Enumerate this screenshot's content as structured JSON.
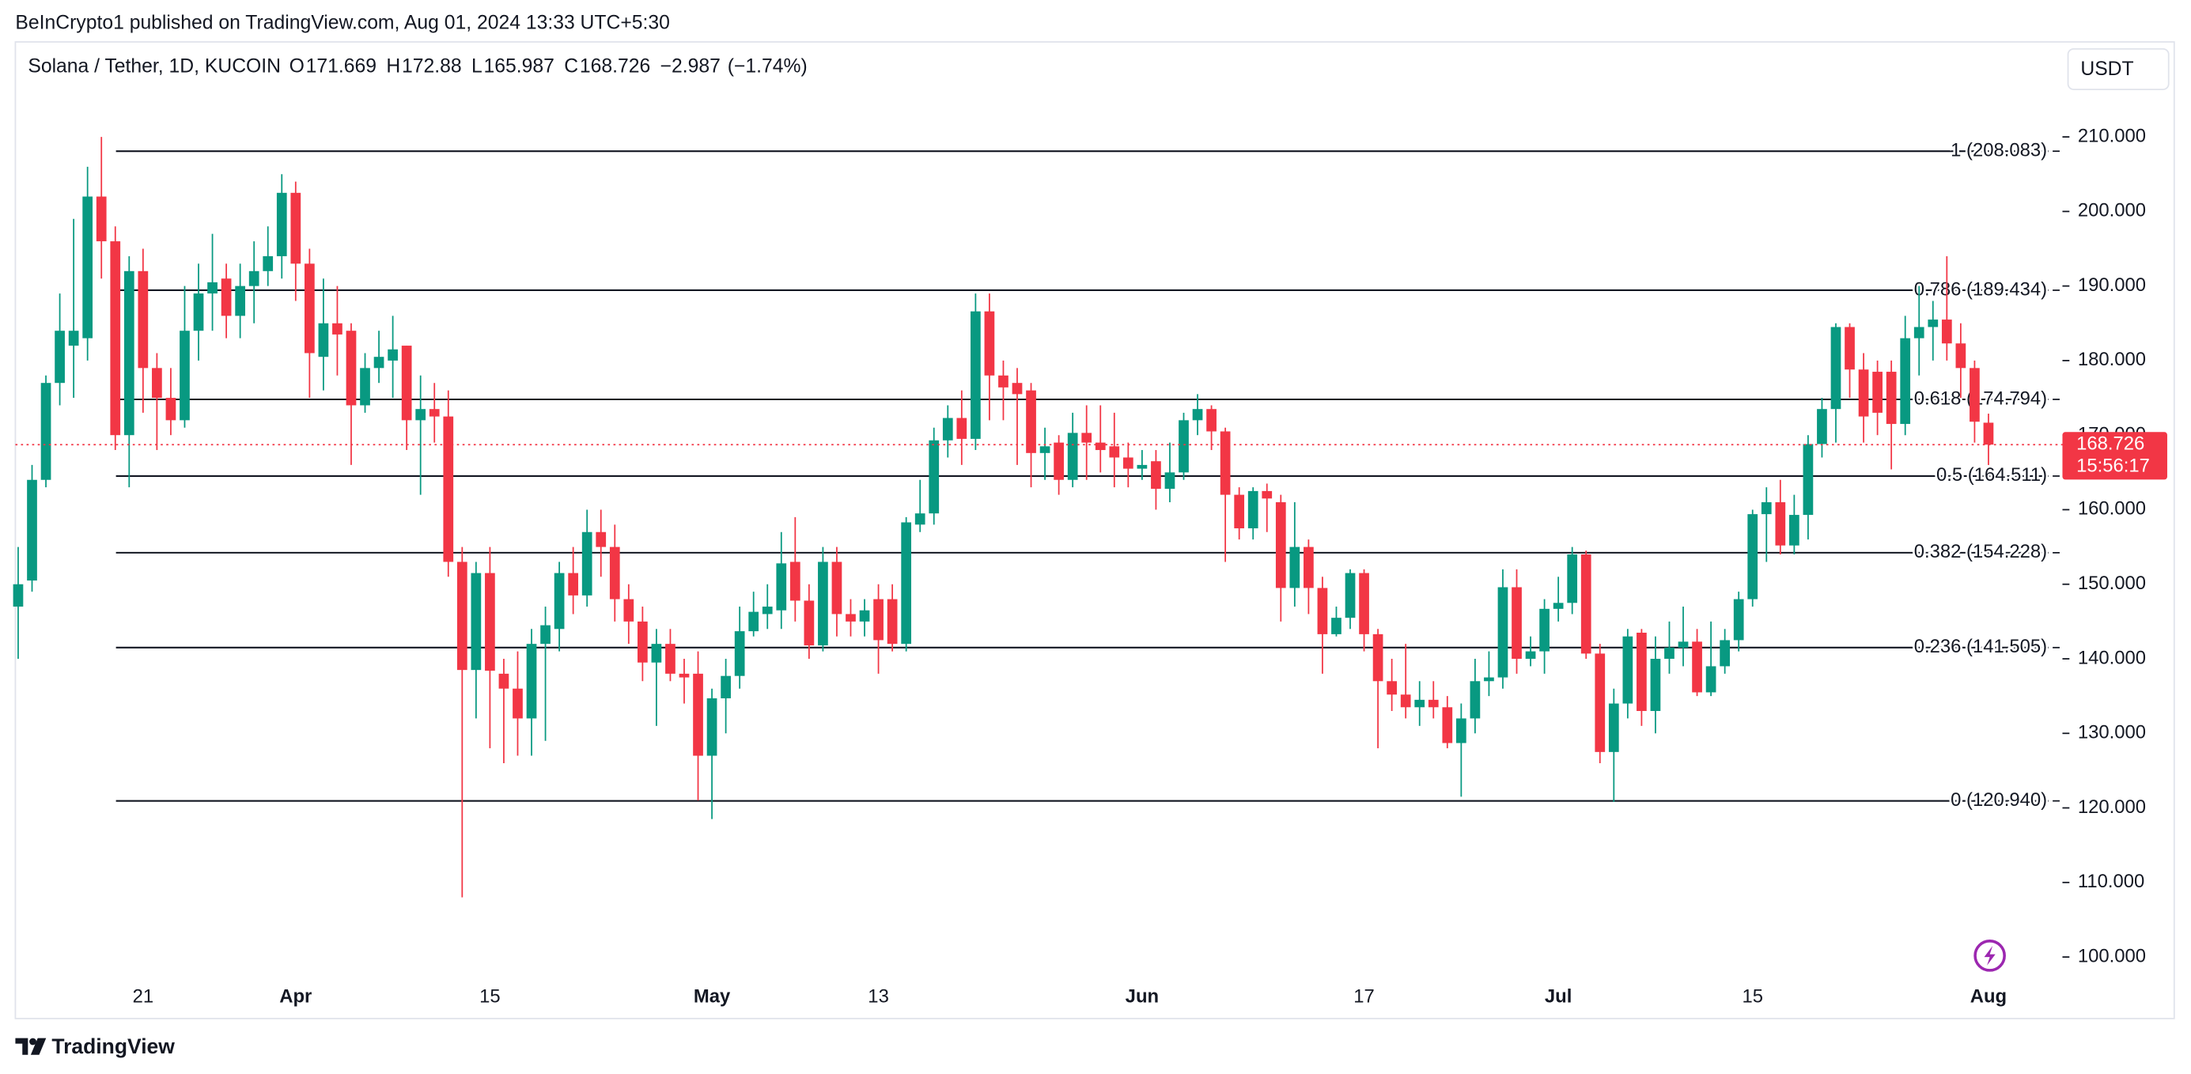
{
  "chart_data": {
    "type": "candlestick",
    "attribution": "BeInCrypto1 published on TradingView.com, Aug 01, 2024 13:33 UTC+5:30",
    "title": "Solana / Tether, 1D, KUCOIN",
    "legend_keys": [
      "O",
      "H",
      "L",
      "C"
    ],
    "change": {
      "value": -2.987,
      "label": "−2.987"
    },
    "change_pct": {
      "value": -1.74,
      "label": "(−1.74%)"
    },
    "currency": "USDT",
    "countdown": "15:56:17",
    "brand": "TradingView",
    "up_color": "#089981",
    "down_color": "#f23645",
    "ylim": [
      91.75,
      222.74
    ],
    "yticks": [
      {
        "value": 100,
        "label": "100.000"
      },
      {
        "value": 110,
        "label": "110.000"
      },
      {
        "value": 120,
        "label": "120.000"
      },
      {
        "value": 130,
        "label": "130.000"
      },
      {
        "value": 140,
        "label": "140.000"
      },
      {
        "value": 150,
        "label": "150.000"
      },
      {
        "value": 160,
        "label": "160.000"
      },
      {
        "value": 170,
        "label": "170.000"
      },
      {
        "value": 180,
        "label": "180.000"
      },
      {
        "value": 190,
        "label": "190.000"
      },
      {
        "value": 200,
        "label": "200.000"
      },
      {
        "value": 210,
        "label": "210.000"
      }
    ],
    "fib_levels": [
      {
        "value": 208.083,
        "label": "1 (208.083)"
      },
      {
        "value": 189.434,
        "label": "0.786 (189.434)"
      },
      {
        "value": 174.794,
        "label": "0.618 (174.794)"
      },
      {
        "value": 164.511,
        "label": "0.5 (164.511)"
      },
      {
        "value": 154.228,
        "label": "0.382 (154.228)"
      },
      {
        "value": 141.505,
        "label": "0.236 (141.505)"
      },
      {
        "value": 120.94,
        "label": "0 (120.940)"
      }
    ],
    "categories": [
      null,
      null,
      null,
      null,
      null,
      null,
      null,
      null,
      null,
      "21",
      null,
      null,
      null,
      null,
      null,
      null,
      null,
      null,
      null,
      null,
      "Apr",
      null,
      null,
      null,
      null,
      null,
      null,
      null,
      null,
      null,
      null,
      null,
      null,
      null,
      "15",
      null,
      null,
      null,
      null,
      null,
      null,
      null,
      null,
      null,
      null,
      null,
      null,
      null,
      null,
      null,
      "May",
      null,
      null,
      null,
      null,
      null,
      null,
      null,
      null,
      null,
      null,
      null,
      "13",
      null,
      null,
      null,
      null,
      null,
      null,
      null,
      null,
      null,
      null,
      null,
      null,
      null,
      null,
      null,
      null,
      null,
      null,
      "Jun",
      null,
      null,
      null,
      null,
      null,
      null,
      null,
      null,
      null,
      null,
      null,
      null,
      null,
      null,
      null,
      "17",
      null,
      null,
      null,
      null,
      null,
      null,
      null,
      null,
      null,
      null,
      null,
      null,
      null,
      "Jul",
      null,
      null,
      null,
      null,
      null,
      null,
      null,
      null,
      null,
      null,
      null,
      null,
      null,
      "15",
      null,
      null,
      null,
      null,
      null,
      null,
      null,
      null,
      null,
      null,
      null,
      null,
      null,
      null,
      null,
      null,
      "Aug"
    ],
    "ohlc": [
      [
        147,
        155,
        140,
        150
      ],
      [
        150.5,
        166,
        149,
        164
      ],
      [
        164,
        178,
        163,
        177
      ],
      [
        177,
        189,
        174,
        184
      ],
      [
        182,
        199,
        175,
        184
      ],
      [
        183,
        206,
        180,
        202
      ],
      [
        202,
        210,
        191,
        196
      ],
      [
        196,
        198,
        168,
        170
      ],
      [
        170,
        194,
        163,
        192
      ],
      [
        192,
        195,
        173,
        179
      ],
      [
        179,
        181,
        168,
        175
      ],
      [
        175,
        179,
        170,
        172
      ],
      [
        172,
        190,
        171,
        184
      ],
      [
        184,
        193,
        180,
        189
      ],
      [
        189,
        197,
        184,
        190.5
      ],
      [
        191,
        193,
        183,
        186
      ],
      [
        186,
        193,
        183,
        190
      ],
      [
        190,
        196,
        185,
        192
      ],
      [
        192,
        198,
        190,
        194
      ],
      [
        194,
        205,
        191,
        202.5
      ],
      [
        202.5,
        204,
        188,
        193
      ],
      [
        193,
        195,
        175,
        181
      ],
      [
        180.5,
        191,
        176,
        185
      ],
      [
        185,
        190,
        178,
        183.5
      ],
      [
        184,
        185,
        166,
        174
      ],
      [
        174,
        181,
        173,
        179
      ],
      [
        179,
        184,
        177,
        180.5
      ],
      [
        180,
        186,
        175,
        181.5
      ],
      [
        182,
        182,
        168,
        172
      ],
      [
        172,
        178,
        162,
        173.5
      ],
      [
        173.5,
        177,
        169,
        172.5
      ],
      [
        172.5,
        176,
        151,
        153
      ],
      [
        153,
        155,
        108,
        138.5
      ],
      [
        138.5,
        153,
        132,
        151.5
      ],
      [
        151.5,
        155,
        128,
        138.4
      ],
      [
        138,
        140,
        126,
        136
      ],
      [
        136,
        141,
        127,
        132
      ],
      [
        132,
        144,
        127,
        142
      ],
      [
        142,
        147,
        129,
        144.5
      ],
      [
        144,
        153,
        141,
        151.5
      ],
      [
        151.5,
        155,
        146,
        148.5
      ],
      [
        148.5,
        160,
        147,
        157
      ],
      [
        157,
        160,
        151,
        155
      ],
      [
        155,
        158,
        145,
        148
      ],
      [
        148,
        150,
        142,
        145
      ],
      [
        145,
        147,
        137,
        139.5
      ],
      [
        139.5,
        144,
        131,
        142
      ],
      [
        142,
        144,
        137,
        138
      ],
      [
        138,
        140,
        134,
        137.5
      ],
      [
        138,
        141,
        121,
        127
      ],
      [
        127,
        136,
        118.5,
        134.7
      ],
      [
        134.7,
        140,
        130,
        137.7
      ],
      [
        137.7,
        147,
        136,
        143.7
      ],
      [
        143.7,
        149,
        143,
        146.3
      ],
      [
        146,
        150,
        144,
        147
      ],
      [
        146.5,
        157,
        144,
        152.8
      ],
      [
        153,
        159,
        145,
        147.8
      ],
      [
        147.8,
        150,
        140,
        141.8
      ],
      [
        141.8,
        155,
        141,
        153
      ],
      [
        153,
        155,
        143,
        146
      ],
      [
        146,
        148,
        143,
        145
      ],
      [
        145,
        148,
        143,
        146.5
      ],
      [
        148,
        150,
        138,
        142.5
      ],
      [
        148,
        150,
        141,
        142
      ],
      [
        142,
        159,
        141,
        158.3
      ],
      [
        158,
        164,
        157,
        159.5
      ],
      [
        159.5,
        171,
        158,
        169.3
      ],
      [
        169.3,
        174,
        167,
        172.3
      ],
      [
        172.3,
        176,
        166,
        169.5
      ],
      [
        169.5,
        189,
        168,
        186.6
      ],
      [
        186.6,
        189,
        172,
        178
      ],
      [
        178,
        180,
        172,
        176.4
      ],
      [
        177,
        179,
        166,
        175.5
      ],
      [
        176,
        177,
        163,
        167.6
      ],
      [
        167.6,
        171,
        164,
        168.5
      ],
      [
        169,
        170,
        162,
        164
      ],
      [
        164,
        173,
        163,
        170.3
      ],
      [
        170.3,
        174,
        164,
        169
      ],
      [
        169,
        174,
        165,
        168
      ],
      [
        168.5,
        173,
        163,
        167
      ],
      [
        167,
        169,
        163,
        165.5
      ],
      [
        165.5,
        168,
        164,
        166
      ],
      [
        166.5,
        168,
        160,
        162.8
      ],
      [
        162.8,
        169,
        161,
        165
      ],
      [
        165,
        173,
        164,
        172
      ],
      [
        172,
        175.5,
        170,
        173.5
      ],
      [
        173.5,
        174,
        168,
        170.5
      ],
      [
        170.5,
        171,
        153,
        162
      ],
      [
        162,
        163,
        156,
        157.5
      ],
      [
        157.5,
        163,
        156,
        162.5
      ],
      [
        162.5,
        163.5,
        157,
        161.5
      ],
      [
        161,
        162,
        145,
        149.5
      ],
      [
        149.5,
        161,
        147,
        155
      ],
      [
        155,
        156,
        146,
        149.5
      ],
      [
        149.5,
        151,
        138,
        143.3
      ],
      [
        143.3,
        147,
        143,
        145.5
      ],
      [
        145.5,
        152,
        144,
        151.5
      ],
      [
        151.5,
        152,
        141,
        143.3
      ],
      [
        143.3,
        144,
        128,
        137
      ],
      [
        137,
        140,
        133,
        135.2
      ],
      [
        135.2,
        142,
        132,
        133.5
      ],
      [
        133.5,
        137,
        131,
        134.5
      ],
      [
        134.5,
        137,
        132,
        133.5
      ],
      [
        133.5,
        135,
        128,
        128.7
      ],
      [
        128.7,
        134,
        121.5,
        132
      ],
      [
        132,
        140,
        130,
        137
      ],
      [
        137,
        141,
        135,
        137.5
      ],
      [
        137.5,
        152,
        136,
        149.6
      ],
      [
        149.6,
        152,
        138,
        140
      ],
      [
        140,
        143,
        139,
        141
      ],
      [
        141,
        148,
        138,
        146.7
      ],
      [
        146.7,
        151,
        145,
        147.5
      ],
      [
        147.5,
        155,
        146,
        154
      ],
      [
        154,
        154.5,
        140,
        140.7
      ],
      [
        140.7,
        142,
        126,
        127.5
      ],
      [
        127.5,
        136,
        120.8,
        134
      ],
      [
        134,
        144,
        132,
        143
      ],
      [
        143.5,
        144,
        131,
        133
      ],
      [
        133,
        143,
        130,
        140
      ],
      [
        140,
        145,
        138,
        141.5
      ],
      [
        141.5,
        147,
        139,
        142.3
      ],
      [
        142.3,
        144,
        135,
        135.5
      ],
      [
        135.5,
        145,
        135,
        139
      ],
      [
        139,
        144,
        138,
        142.5
      ],
      [
        142.5,
        149,
        141,
        148
      ],
      [
        148,
        160,
        147,
        159.4
      ],
      [
        159.4,
        163,
        153,
        161
      ],
      [
        161,
        164,
        154,
        155.2
      ],
      [
        155.2,
        162,
        154,
        159.3
      ],
      [
        159.3,
        170,
        156,
        168.8
      ],
      [
        168.8,
        175,
        167,
        173.5
      ],
      [
        173.5,
        185,
        169,
        184.5
      ],
      [
        184.5,
        185,
        175,
        178.8
      ],
      [
        178.8,
        181,
        169,
        172.5
      ],
      [
        178.5,
        180,
        170,
        173
      ],
      [
        178.5,
        180,
        165.4,
        171.5
      ],
      [
        171.5,
        186,
        170,
        183
      ],
      [
        183,
        190,
        178,
        184.5
      ],
      [
        184.5,
        188,
        180,
        185.5
      ],
      [
        185.5,
        194,
        180,
        182.3
      ],
      [
        182.3,
        185,
        175,
        179
      ],
      [
        179,
        180,
        169,
        171.8
      ],
      [
        171.669,
        172.88,
        165.987,
        168.726
      ]
    ]
  }
}
